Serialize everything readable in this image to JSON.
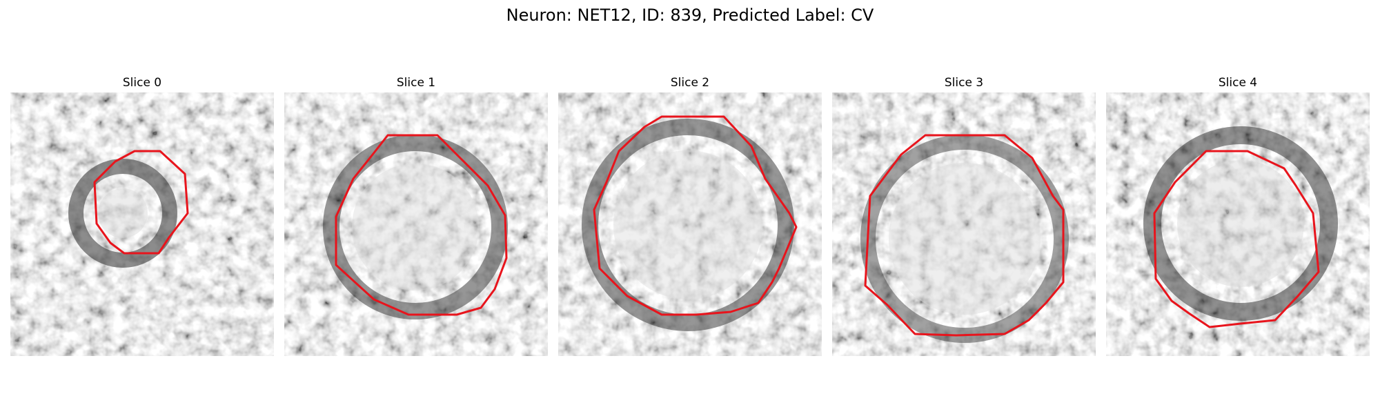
{
  "figure": {
    "title": "Neuron: NET12, ID: 839, Predicted Label: CV"
  },
  "colors": {
    "contour": "#e8141c",
    "background": "#ffffff"
  },
  "panels": [
    {
      "title": "Slice 0"
    },
    {
      "title": "Slice 1"
    },
    {
      "title": "Slice 2"
    },
    {
      "title": "Slice 3"
    },
    {
      "title": "Slice 4"
    }
  ]
}
